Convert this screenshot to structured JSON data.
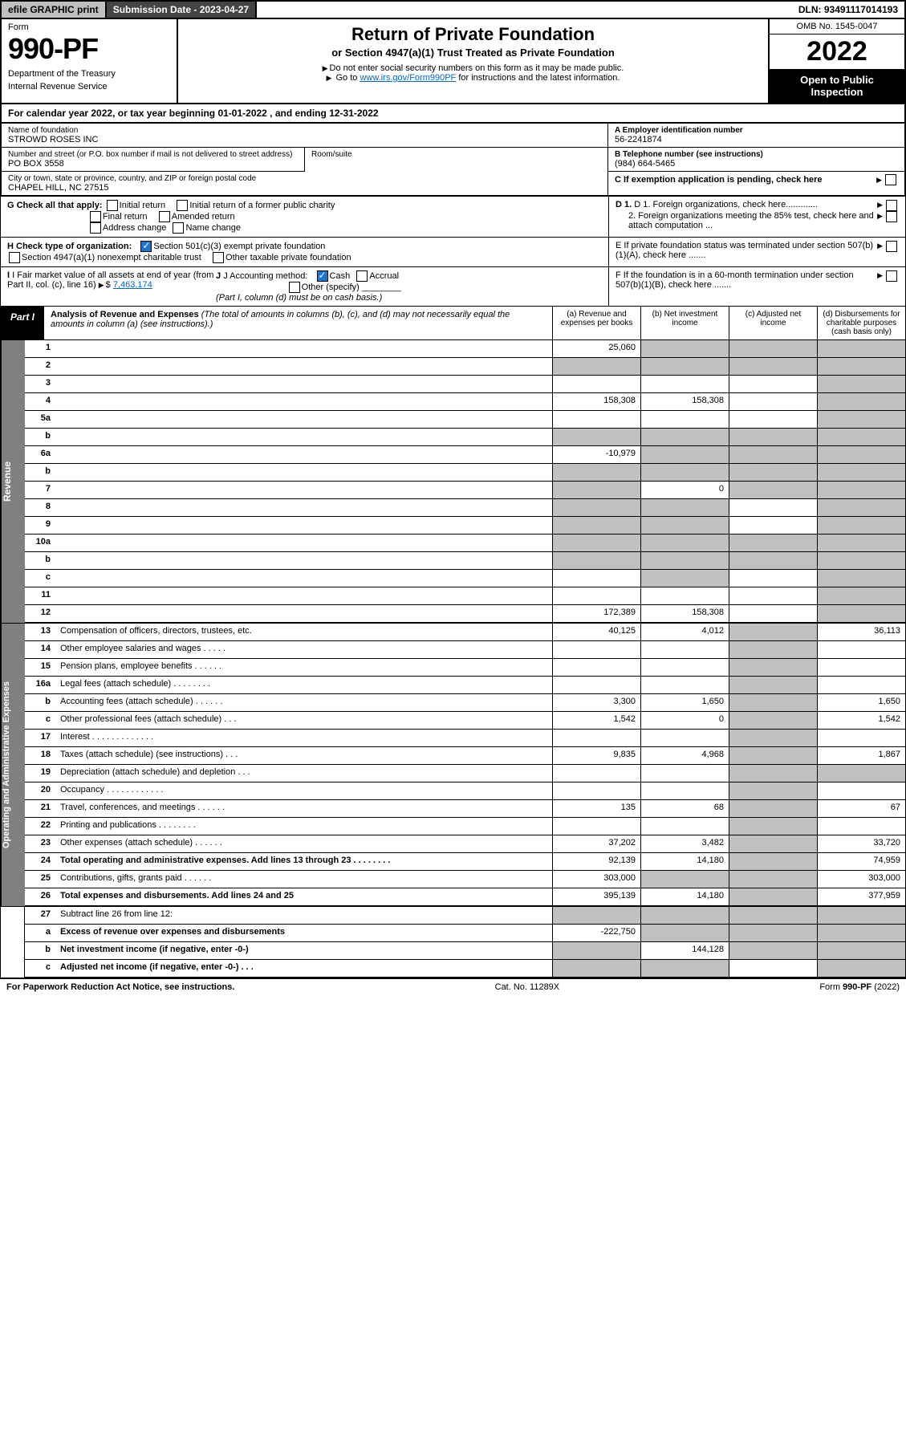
{
  "header": {
    "efile": "efile GRAPHIC print",
    "submission": "Submission Date - 2023-04-27",
    "dln": "DLN: 93491117014193"
  },
  "title": {
    "form_label": "Form",
    "form_num": "990-PF",
    "dept1": "Department of the Treasury",
    "dept2": "Internal Revenue Service",
    "main": "Return of Private Foundation",
    "sub": "or Section 4947(a)(1) Trust Treated as Private Foundation",
    "instr1": "Do not enter social security numbers on this form as it may be made public.",
    "instr2_pre": "Go to ",
    "instr2_link": "www.irs.gov/Form990PF",
    "instr2_post": " for instructions and the latest information.",
    "omb": "OMB No. 1545-0047",
    "year": "2022",
    "open": "Open to Public Inspection"
  },
  "cal_year": {
    "pre": "For calendar year 2022, or tax year beginning ",
    "begin": "01-01-2022",
    "mid": " , and ending ",
    "end": "12-31-2022"
  },
  "info": {
    "name_lbl": "Name of foundation",
    "name": "STROWD ROSES INC",
    "addr_lbl": "Number and street (or P.O. box number if mail is not delivered to street address)",
    "addr": "PO BOX 3558",
    "room_lbl": "Room/suite",
    "city_lbl": "City or town, state or province, country, and ZIP or foreign postal code",
    "city": "CHAPEL HILL, NC  27515",
    "ein_lbl": "A Employer identification number",
    "ein": "56-2241874",
    "tel_lbl": "B Telephone number (see instructions)",
    "tel": "(984) 664-5465",
    "c_lbl": "C If exemption application is pending, check here",
    "d1": "D 1. Foreign organizations, check here.............",
    "d2": "2. Foreign organizations meeting the 85% test, check here and attach computation ...",
    "e_lbl": "E  If private foundation status was terminated under section 507(b)(1)(A), check here .......",
    "f_lbl": "F  If the foundation is in a 60-month termination under section 507(b)(1)(B), check here .......",
    "g_lbl": "G Check all that apply:",
    "g_opts": [
      "Initial return",
      "Initial return of a former public charity",
      "Final return",
      "Amended return",
      "Address change",
      "Name change"
    ],
    "h_lbl": "H Check type of organization:",
    "h1": "Section 501(c)(3) exempt private foundation",
    "h2": "Section 4947(a)(1) nonexempt charitable trust",
    "h3": "Other taxable private foundation",
    "i_lbl": "I Fair market value of all assets at end of year (from Part II, col. (c), line 16)",
    "i_val": "7,463,174",
    "j_lbl": "J Accounting method:",
    "j_cash": "Cash",
    "j_accrual": "Accrual",
    "j_other": "Other (specify)",
    "j_note": "(Part I, column (d) must be on cash basis.)"
  },
  "part1": {
    "label": "Part I",
    "title": "Analysis of Revenue and Expenses",
    "title_note": " (The total of amounts in columns (b), (c), and (d) may not necessarily equal the amounts in column (a) (see instructions).)",
    "col_a": "(a)  Revenue and expenses per books",
    "col_b": "(b)  Net investment income",
    "col_c": "(c)  Adjusted net income",
    "col_d": "(d)  Disbursements for charitable purposes (cash basis only)"
  },
  "side_labels": {
    "revenue": "Revenue",
    "expenses": "Operating and Administrative Expenses"
  },
  "rows": [
    {
      "n": "1",
      "d": "",
      "a": "25,060",
      "b": "",
      "c": "",
      "g": [
        false,
        true,
        true,
        true
      ]
    },
    {
      "n": "2",
      "d": "",
      "a": "",
      "b": "",
      "c": "",
      "g": [
        true,
        true,
        true,
        true
      ]
    },
    {
      "n": "3",
      "d": "",
      "a": "",
      "b": "",
      "c": "",
      "g": [
        false,
        false,
        false,
        true
      ]
    },
    {
      "n": "4",
      "d": "",
      "a": "158,308",
      "b": "158,308",
      "c": "",
      "g": [
        false,
        false,
        false,
        true
      ]
    },
    {
      "n": "5a",
      "d": "",
      "a": "",
      "b": "",
      "c": "",
      "g": [
        false,
        false,
        false,
        true
      ]
    },
    {
      "n": "b",
      "d": "",
      "a": "",
      "b": "",
      "c": "",
      "g": [
        true,
        true,
        true,
        true
      ]
    },
    {
      "n": "6a",
      "d": "",
      "a": "-10,979",
      "b": "",
      "c": "",
      "g": [
        false,
        true,
        true,
        true
      ]
    },
    {
      "n": "b",
      "d": "",
      "a": "",
      "b": "",
      "c": "",
      "g": [
        true,
        true,
        true,
        true
      ]
    },
    {
      "n": "7",
      "d": "",
      "a": "",
      "b": "0",
      "c": "",
      "g": [
        true,
        false,
        true,
        true
      ]
    },
    {
      "n": "8",
      "d": "",
      "a": "",
      "b": "",
      "c": "",
      "g": [
        true,
        true,
        false,
        true
      ]
    },
    {
      "n": "9",
      "d": "",
      "a": "",
      "b": "",
      "c": "",
      "g": [
        true,
        true,
        false,
        true
      ]
    },
    {
      "n": "10a",
      "d": "",
      "a": "",
      "b": "",
      "c": "",
      "g": [
        true,
        true,
        true,
        true
      ]
    },
    {
      "n": "b",
      "d": "",
      "a": "",
      "b": "",
      "c": "",
      "g": [
        true,
        true,
        true,
        true
      ]
    },
    {
      "n": "c",
      "d": "",
      "a": "",
      "b": "",
      "c": "",
      "g": [
        false,
        true,
        false,
        true
      ]
    },
    {
      "n": "11",
      "d": "",
      "a": "",
      "b": "",
      "c": "",
      "g": [
        false,
        false,
        false,
        true
      ]
    },
    {
      "n": "12",
      "d": "",
      "a": "172,389",
      "b": "158,308",
      "c": "",
      "g": [
        false,
        false,
        false,
        true
      ],
      "bold": true
    }
  ],
  "exp_rows": [
    {
      "n": "13",
      "d": "36,113",
      "a": "40,125",
      "b": "4,012",
      "c": ""
    },
    {
      "n": "14",
      "d": "",
      "a": "",
      "b": "",
      "c": ""
    },
    {
      "n": "15",
      "d": "",
      "a": "",
      "b": "",
      "c": ""
    },
    {
      "n": "16a",
      "d": "",
      "a": "",
      "b": "",
      "c": ""
    },
    {
      "n": "b",
      "d": "1,650",
      "a": "3,300",
      "b": "1,650",
      "c": ""
    },
    {
      "n": "c",
      "d": "1,542",
      "a": "1,542",
      "b": "0",
      "c": ""
    },
    {
      "n": "17",
      "d": "",
      "a": "",
      "b": "",
      "c": ""
    },
    {
      "n": "18",
      "d": "1,867",
      "a": "9,835",
      "b": "4,968",
      "c": ""
    },
    {
      "n": "19",
      "d": "",
      "a": "",
      "b": "",
      "c": "",
      "gd": true
    },
    {
      "n": "20",
      "d": "",
      "a": "",
      "b": "",
      "c": ""
    },
    {
      "n": "21",
      "d": "67",
      "a": "135",
      "b": "68",
      "c": ""
    },
    {
      "n": "22",
      "d": "",
      "a": "",
      "b": "",
      "c": ""
    },
    {
      "n": "23",
      "d": "33,720",
      "a": "37,202",
      "b": "3,482",
      "c": ""
    },
    {
      "n": "24",
      "d": "74,959",
      "a": "92,139",
      "b": "14,180",
      "c": "",
      "bold": true
    },
    {
      "n": "25",
      "d": "303,000",
      "a": "303,000",
      "b": "",
      "c": "",
      "gb": true,
      "gc": true
    },
    {
      "n": "26",
      "d": "377,959",
      "a": "395,139",
      "b": "14,180",
      "c": "",
      "bold": true
    }
  ],
  "bottom_rows": [
    {
      "n": "27",
      "d": "",
      "a": "",
      "b": "",
      "c": "",
      "ga": true,
      "gb": true,
      "gc": true,
      "gd": true
    },
    {
      "n": "a",
      "d": "",
      "a": "-222,750",
      "b": "",
      "c": "",
      "bold": true,
      "gb": true,
      "gc": true,
      "gd": true
    },
    {
      "n": "b",
      "d": "",
      "a": "",
      "b": "144,128",
      "c": "",
      "bold": true,
      "ga": true,
      "gc": true,
      "gd": true
    },
    {
      "n": "c",
      "d": "",
      "a": "",
      "b": "",
      "c": "",
      "bold": true,
      "ga": true,
      "gb": true,
      "gd": true
    }
  ],
  "footer": {
    "left": "For Paperwork Reduction Act Notice, see instructions.",
    "mid": "Cat. No. 11289X",
    "right": "Form 990-PF (2022)"
  }
}
